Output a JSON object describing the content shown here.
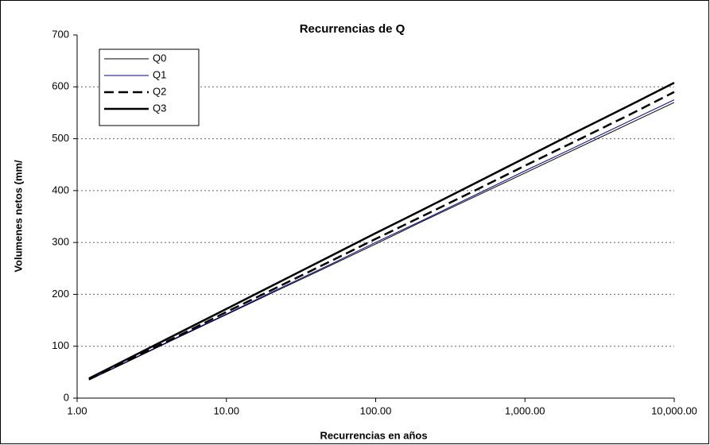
{
  "chart_data": {
    "type": "line",
    "title": "Recurrencias de Q",
    "x_label": "Recurrencias en años",
    "y_label": "Volumenes netos (mm/",
    "x": [
      1.2,
      2,
      5,
      10,
      20,
      50,
      100,
      200,
      500,
      1000,
      2000,
      5000,
      10000
    ],
    "series": [
      {
        "name": "Q0",
        "color": "#000000",
        "width": 1,
        "style": "solid",
        "values": [
          35,
          65,
          120,
          161,
          202,
          256,
          297,
          339,
          393,
          434,
          475,
          529,
          570
        ]
      },
      {
        "name": "Q1",
        "color": "#000080",
        "width": 1,
        "style": "solid",
        "values": [
          35,
          66,
          121,
          162,
          204,
          258,
          300,
          341,
          396,
          438,
          479,
          534,
          575
        ]
      },
      {
        "name": "Q2",
        "color": "#000000",
        "width": 2.5,
        "style": "dashed",
        "values": [
          36,
          67,
          123,
          166,
          208,
          264,
          307,
          349,
          405,
          448,
          490,
          546,
          590
        ]
      },
      {
        "name": "Q3",
        "color": "#000000",
        "width": 2.5,
        "style": "solid",
        "values": [
          38,
          70,
          128,
          172,
          216,
          274,
          318,
          361,
          419,
          463,
          507,
          564,
          608
        ]
      }
    ],
    "x_log": true,
    "xlim": [
      1,
      10000
    ],
    "xticks": [
      {
        "value": 1,
        "label": "1.00"
      },
      {
        "value": 10,
        "label": "10.00"
      },
      {
        "value": 100,
        "label": "100.00"
      },
      {
        "value": 1000,
        "label": "1,000.00"
      },
      {
        "value": 10000,
        "label": "10,000.00"
      }
    ],
    "ylim": [
      0,
      700
    ],
    "yticks": [
      0,
      100,
      200,
      300,
      400,
      500,
      600,
      700
    ],
    "grid": true,
    "legend": "upper left"
  }
}
